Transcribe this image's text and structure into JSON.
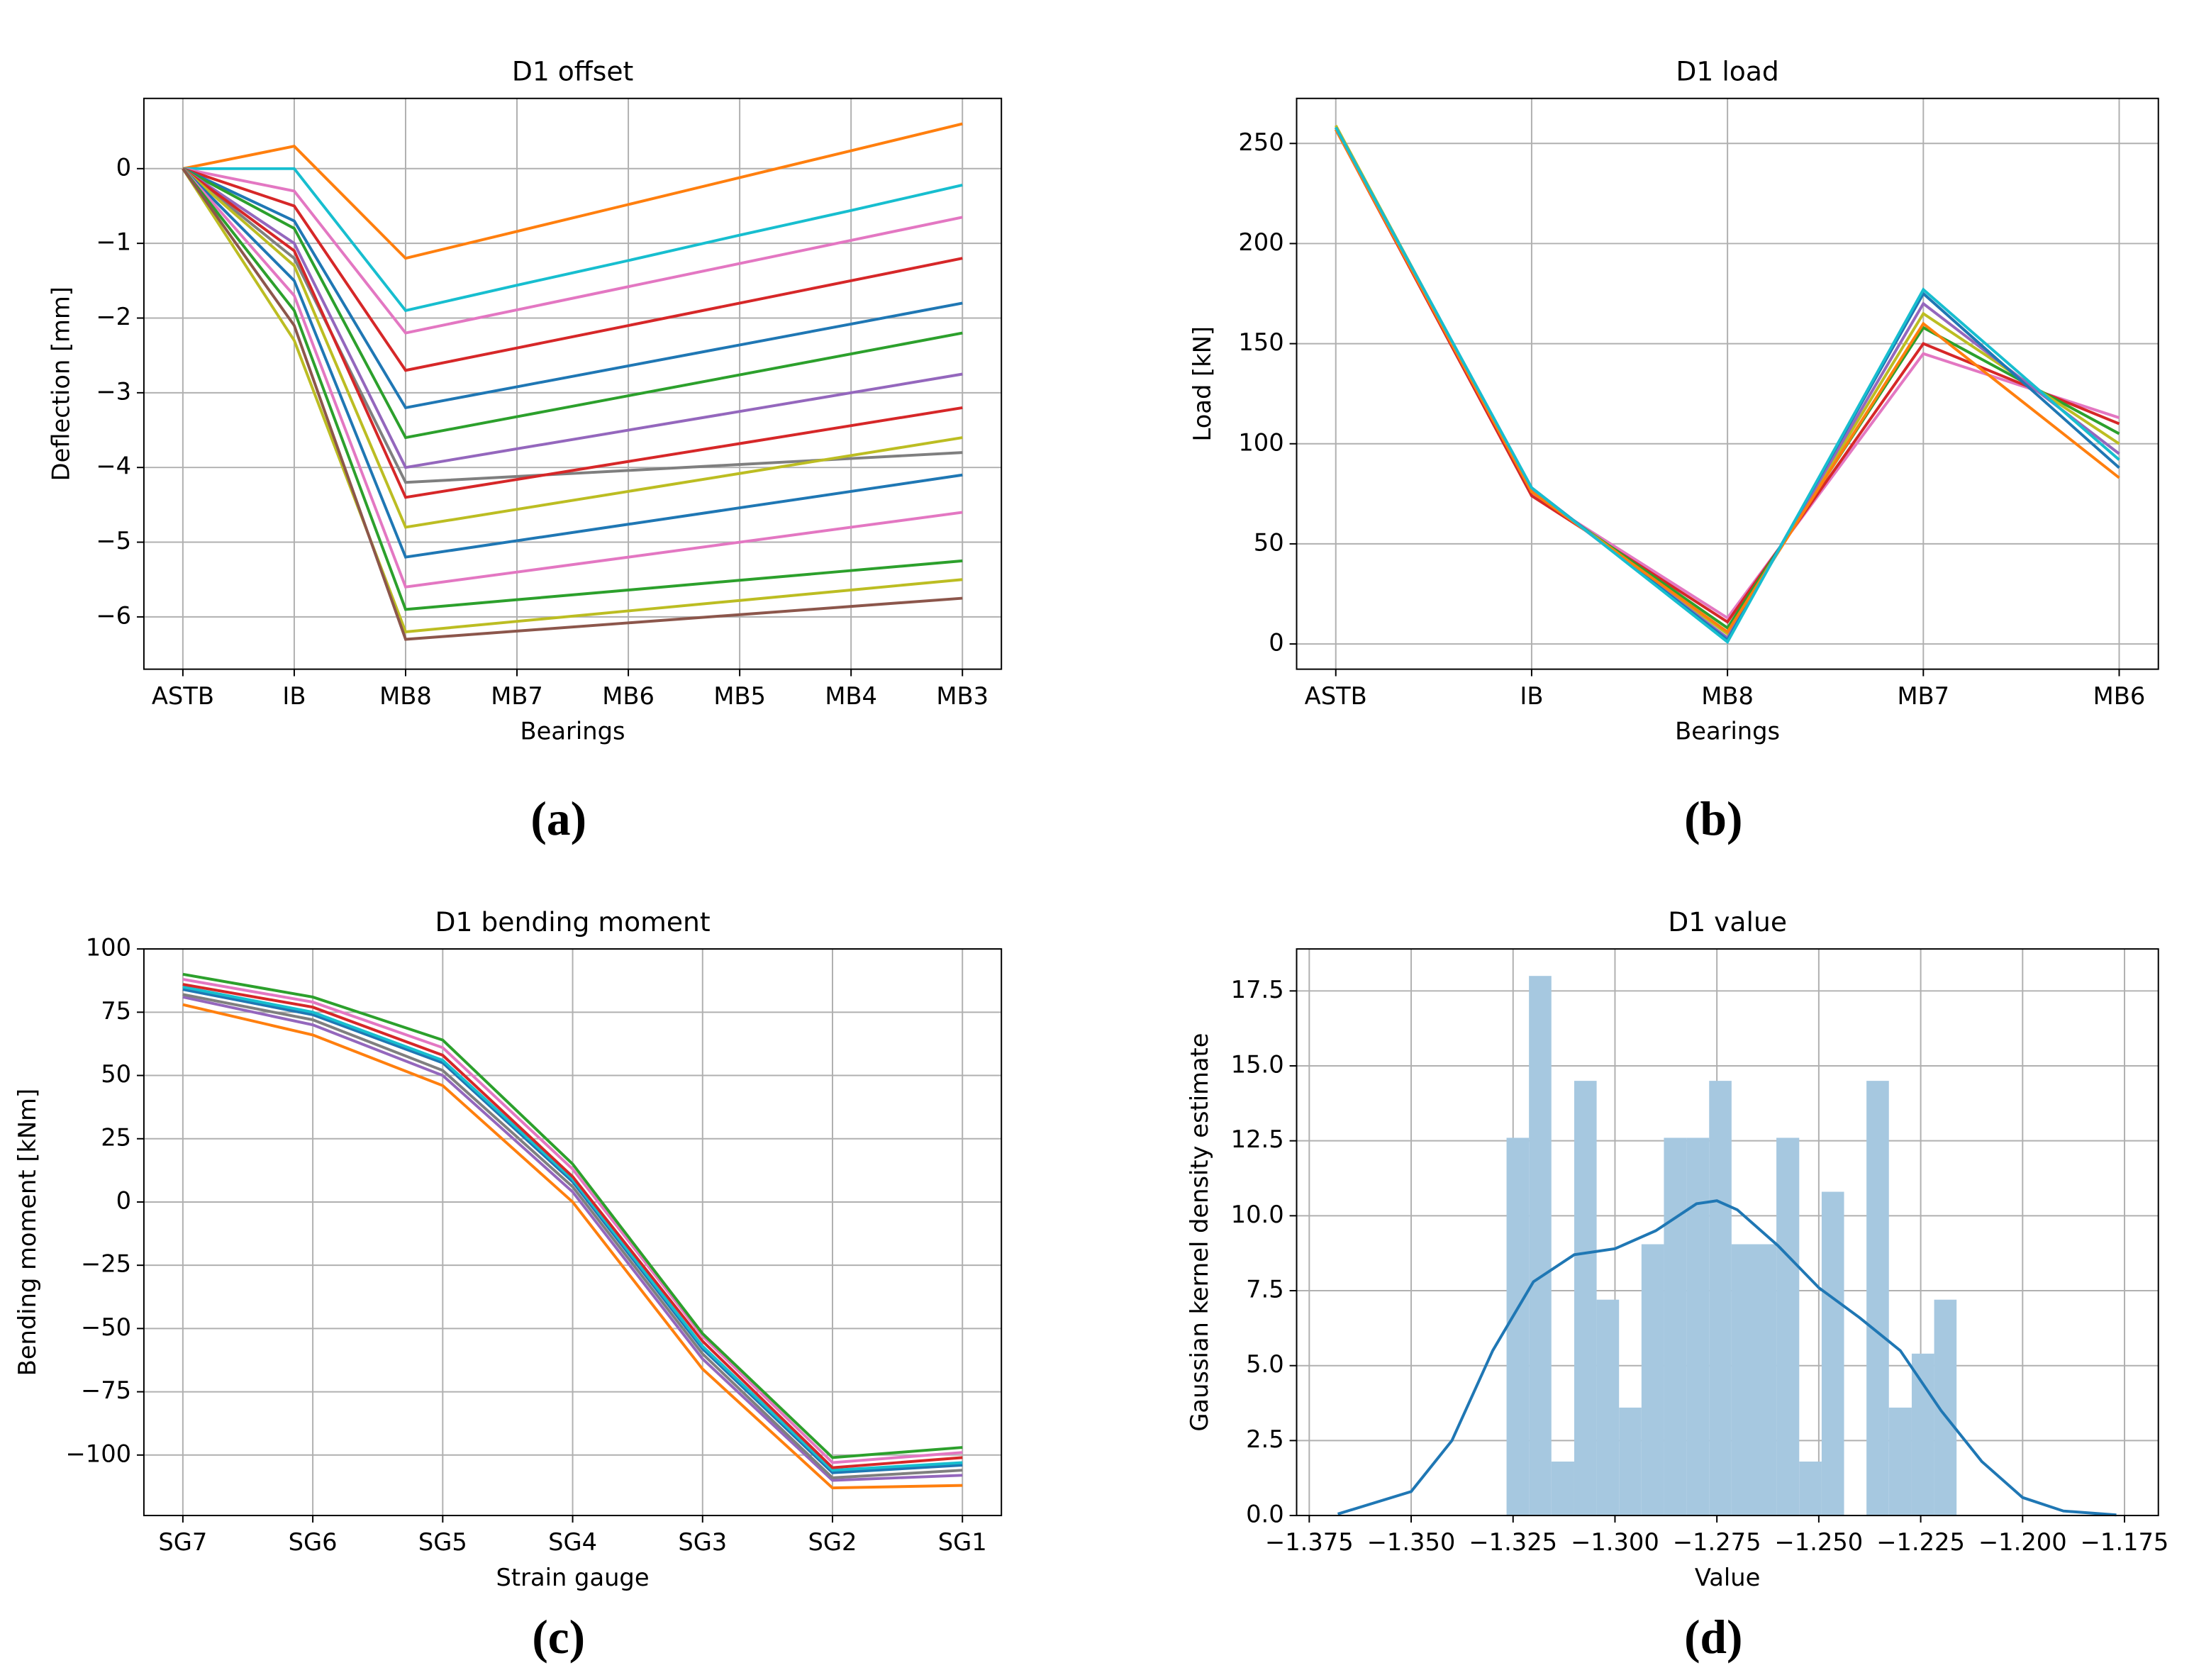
{
  "chart_data": [
    {
      "type": "line",
      "title": "D1 offset",
      "xlabel": "Bearings",
      "ylabel": "Deflection [mm]",
      "caption": "(a)",
      "categories": [
        "ASTB",
        "IB",
        "MB8",
        "MB7",
        "MB6",
        "MB5",
        "MB4",
        "MB3"
      ],
      "ylim": [
        -6.7,
        0.94
      ],
      "grid": true,
      "yticks": [
        {
          "value": -6,
          "label": "−6"
        },
        {
          "value": -5,
          "label": "−5"
        },
        {
          "value": -4,
          "label": "−4"
        },
        {
          "value": -3,
          "label": "−3"
        },
        {
          "value": -2,
          "label": "−2"
        },
        {
          "value": -1,
          "label": "−1"
        },
        0
      ],
      "series": [
        {
          "color": "#ff7f0e",
          "values": [
            0,
            0.3,
            -1.2,
            -0.84,
            -0.48,
            -0.12,
            0.24,
            0.6
          ]
        },
        {
          "color": "#17becf",
          "values": [
            0,
            0,
            -1.9,
            -1.56,
            -1.23,
            -0.89,
            -0.56,
            -0.22
          ]
        },
        {
          "color": "#e377c2",
          "values": [
            0,
            -0.3,
            -2.2,
            -1.89,
            -1.58,
            -1.27,
            -0.96,
            -0.65
          ]
        },
        {
          "color": "#d62728",
          "values": [
            0,
            -0.5,
            -2.7,
            -2.4,
            -2.1,
            -1.8,
            -1.5,
            -1.2
          ]
        },
        {
          "color": "#1f77b4",
          "values": [
            0,
            -0.7,
            -3.2,
            -2.92,
            -2.64,
            -2.36,
            -2.08,
            -1.8
          ]
        },
        {
          "color": "#2ca02c",
          "values": [
            0,
            -0.8,
            -3.6,
            -3.32,
            -3.04,
            -2.76,
            -2.48,
            -2.2
          ]
        },
        {
          "color": "#9467bd",
          "values": [
            0,
            -1.0,
            -4.0,
            -3.75,
            -3.5,
            -3.25,
            -3.0,
            -2.75
          ]
        },
        {
          "color": "#7f7f7f",
          "values": [
            0,
            -1.2,
            -4.2,
            -4.12,
            -4.04,
            -3.96,
            -3.88,
            -3.8
          ]
        },
        {
          "color": "#d62728",
          "values": [
            0,
            -1.1,
            -4.4,
            -4.16,
            -3.92,
            -3.68,
            -3.44,
            -3.2
          ]
        },
        {
          "color": "#bcbd22",
          "values": [
            0,
            -1.3,
            -4.8,
            -4.56,
            -4.32,
            -4.08,
            -3.84,
            -3.6
          ]
        },
        {
          "color": "#1f77b4",
          "values": [
            0,
            -1.5,
            -5.2,
            -4.98,
            -4.76,
            -4.54,
            -4.32,
            -4.1
          ]
        },
        {
          "color": "#e377c2",
          "values": [
            0,
            -1.7,
            -5.6,
            -5.4,
            -5.2,
            -5.0,
            -4.8,
            -4.6
          ]
        },
        {
          "color": "#2ca02c",
          "values": [
            0,
            -1.9,
            -5.9,
            -5.77,
            -5.64,
            -5.51,
            -5.38,
            -5.25
          ]
        },
        {
          "color": "#bcbd22",
          "values": [
            0,
            -2.3,
            -6.2,
            -6.06,
            -5.92,
            -5.78,
            -5.64,
            -5.5
          ]
        },
        {
          "color": "#8c564b",
          "values": [
            0,
            -2.1,
            -6.3,
            -6.19,
            -6.08,
            -5.97,
            -5.86,
            -5.75
          ]
        }
      ]
    },
    {
      "type": "line",
      "title": "D1 load",
      "xlabel": "Bearings",
      "ylabel": "Load [kN]",
      "caption": "(b)",
      "categories": [
        "ASTB",
        "IB",
        "MB8",
        "MB7",
        "MB6"
      ],
      "ylim": [
        -12.6,
        272.5
      ],
      "grid": true,
      "yticks": [
        0,
        50,
        100,
        150,
        200,
        250
      ],
      "series": [
        {
          "color": "#e377c2",
          "values": [
            258,
            75,
            13,
            145,
            113
          ]
        },
        {
          "color": "#d62728",
          "values": [
            257,
            74,
            11,
            150,
            110
          ]
        },
        {
          "color": "#2ca02c",
          "values": [
            258,
            76,
            8,
            158,
            105
          ]
        },
        {
          "color": "#bcbd22",
          "values": [
            259,
            77,
            5,
            165,
            100
          ]
        },
        {
          "color": "#9467bd",
          "values": [
            258,
            77,
            3,
            170,
            95
          ]
        },
        {
          "color": "#1f77b4",
          "values": [
            258,
            78,
            2,
            175,
            88
          ]
        },
        {
          "color": "#ff7f0e",
          "values": [
            257,
            76,
            6,
            160,
            83
          ]
        },
        {
          "color": "#17becf",
          "values": [
            258,
            78,
            1,
            177,
            92
          ]
        }
      ]
    },
    {
      "type": "line",
      "title": "D1 bending moment",
      "xlabel": "Strain gauge",
      "ylabel": "Bending moment [kNm]",
      "caption": "(c)",
      "categories": [
        "SG7",
        "SG6",
        "SG5",
        "SG4",
        "SG3",
        "SG2",
        "SG1"
      ],
      "ylim": [
        -123.9,
        100
      ],
      "grid": true,
      "yticks": [
        {
          "value": -100,
          "label": "−100"
        },
        {
          "value": -75,
          "label": "−75"
        },
        {
          "value": -50,
          "label": "−50"
        },
        {
          "value": -25,
          "label": "−25"
        },
        0,
        25,
        50,
        75,
        100
      ],
      "series": [
        {
          "color": "#ff7f0e",
          "values": [
            78,
            66,
            46,
            0,
            -66,
            -113,
            -112
          ]
        },
        {
          "color": "#9467bd",
          "values": [
            81,
            70,
            50,
            4,
            -62,
            -110,
            -108
          ]
        },
        {
          "color": "#7f7f7f",
          "values": [
            82,
            72,
            52,
            6,
            -60,
            -109,
            -106
          ]
        },
        {
          "color": "#1f77b4",
          "values": [
            84,
            74,
            55,
            8,
            -58,
            -107,
            -104
          ]
        },
        {
          "color": "#17becf",
          "values": [
            85,
            75,
            56,
            9,
            -57,
            -106,
            -103
          ]
        },
        {
          "color": "#d62728",
          "values": [
            86,
            77,
            58,
            10,
            -55,
            -105,
            -101
          ]
        },
        {
          "color": "#e377c2",
          "values": [
            88,
            79,
            61,
            13,
            -53,
            -103,
            -99
          ]
        },
        {
          "color": "#2ca02c",
          "values": [
            90,
            81,
            64,
            15,
            -52,
            -101,
            -97
          ]
        }
      ]
    },
    {
      "type": "histogram",
      "title": "D1 value",
      "xlabel": "Value",
      "ylabel": "Gaussian kernel density estimate",
      "caption": "(d)",
      "xlim": [
        -1.3781,
        -1.1667
      ],
      "ylim": [
        0,
        18.9
      ],
      "grid": true,
      "color": "#a6c8e0",
      "xticks": [
        {
          "value": -1.375,
          "label": "−1.375"
        },
        {
          "value": -1.35,
          "label": "−1.350"
        },
        {
          "value": -1.325,
          "label": "−1.325"
        },
        {
          "value": -1.3,
          "label": "−1.300"
        },
        {
          "value": -1.275,
          "label": "−1.275"
        },
        {
          "value": -1.25,
          "label": "−1.250"
        },
        {
          "value": -1.225,
          "label": "−1.225"
        },
        {
          "value": -1.2,
          "label": "−1.200"
        },
        {
          "value": -1.175,
          "label": "−1.175"
        }
      ],
      "yticks": [
        {
          "value": 0,
          "label": "0.0"
        },
        2.5,
        {
          "value": 5,
          "label": "5.0"
        },
        7.5,
        {
          "value": 10,
          "label": "10.0"
        },
        12.5,
        {
          "value": 15,
          "label": "15.0"
        },
        17.5
      ],
      "bins": [
        -1.3266,
        -1.3211,
        -1.3156,
        -1.31,
        -1.3045,
        -1.299,
        -1.2935,
        -1.288,
        -1.2824,
        -1.2769,
        -1.2714,
        -1.2659,
        -1.2604,
        -1.2548,
        -1.2493,
        -1.2438,
        -1.2383,
        -1.2328,
        -1.2272,
        -1.2217,
        -1.2162
      ],
      "counts": [
        12.6,
        18,
        1.8,
        14.5,
        7.2,
        3.6,
        9.05,
        12.6,
        12.6,
        14.5,
        9.05,
        9.05,
        12.6,
        1.8,
        10.8,
        0,
        14.5,
        3.6,
        5.4,
        7.2
      ],
      "curve": {
        "color": "#1f77b4",
        "x": [
          -1.368,
          -1.35,
          -1.34,
          -1.33,
          -1.32,
          -1.31,
          -1.3,
          -1.29,
          -1.28,
          -1.275,
          -1.27,
          -1.26,
          -1.25,
          -1.24,
          -1.23,
          -1.22,
          -1.21,
          -1.2,
          -1.19,
          -1.177
        ],
        "values": [
          0.05,
          0.8,
          2.5,
          5.5,
          7.8,
          8.7,
          8.9,
          9.5,
          10.4,
          10.5,
          10.2,
          9.0,
          7.6,
          6.6,
          5.5,
          3.5,
          1.8,
          0.6,
          0.15,
          0.02
        ]
      }
    }
  ]
}
